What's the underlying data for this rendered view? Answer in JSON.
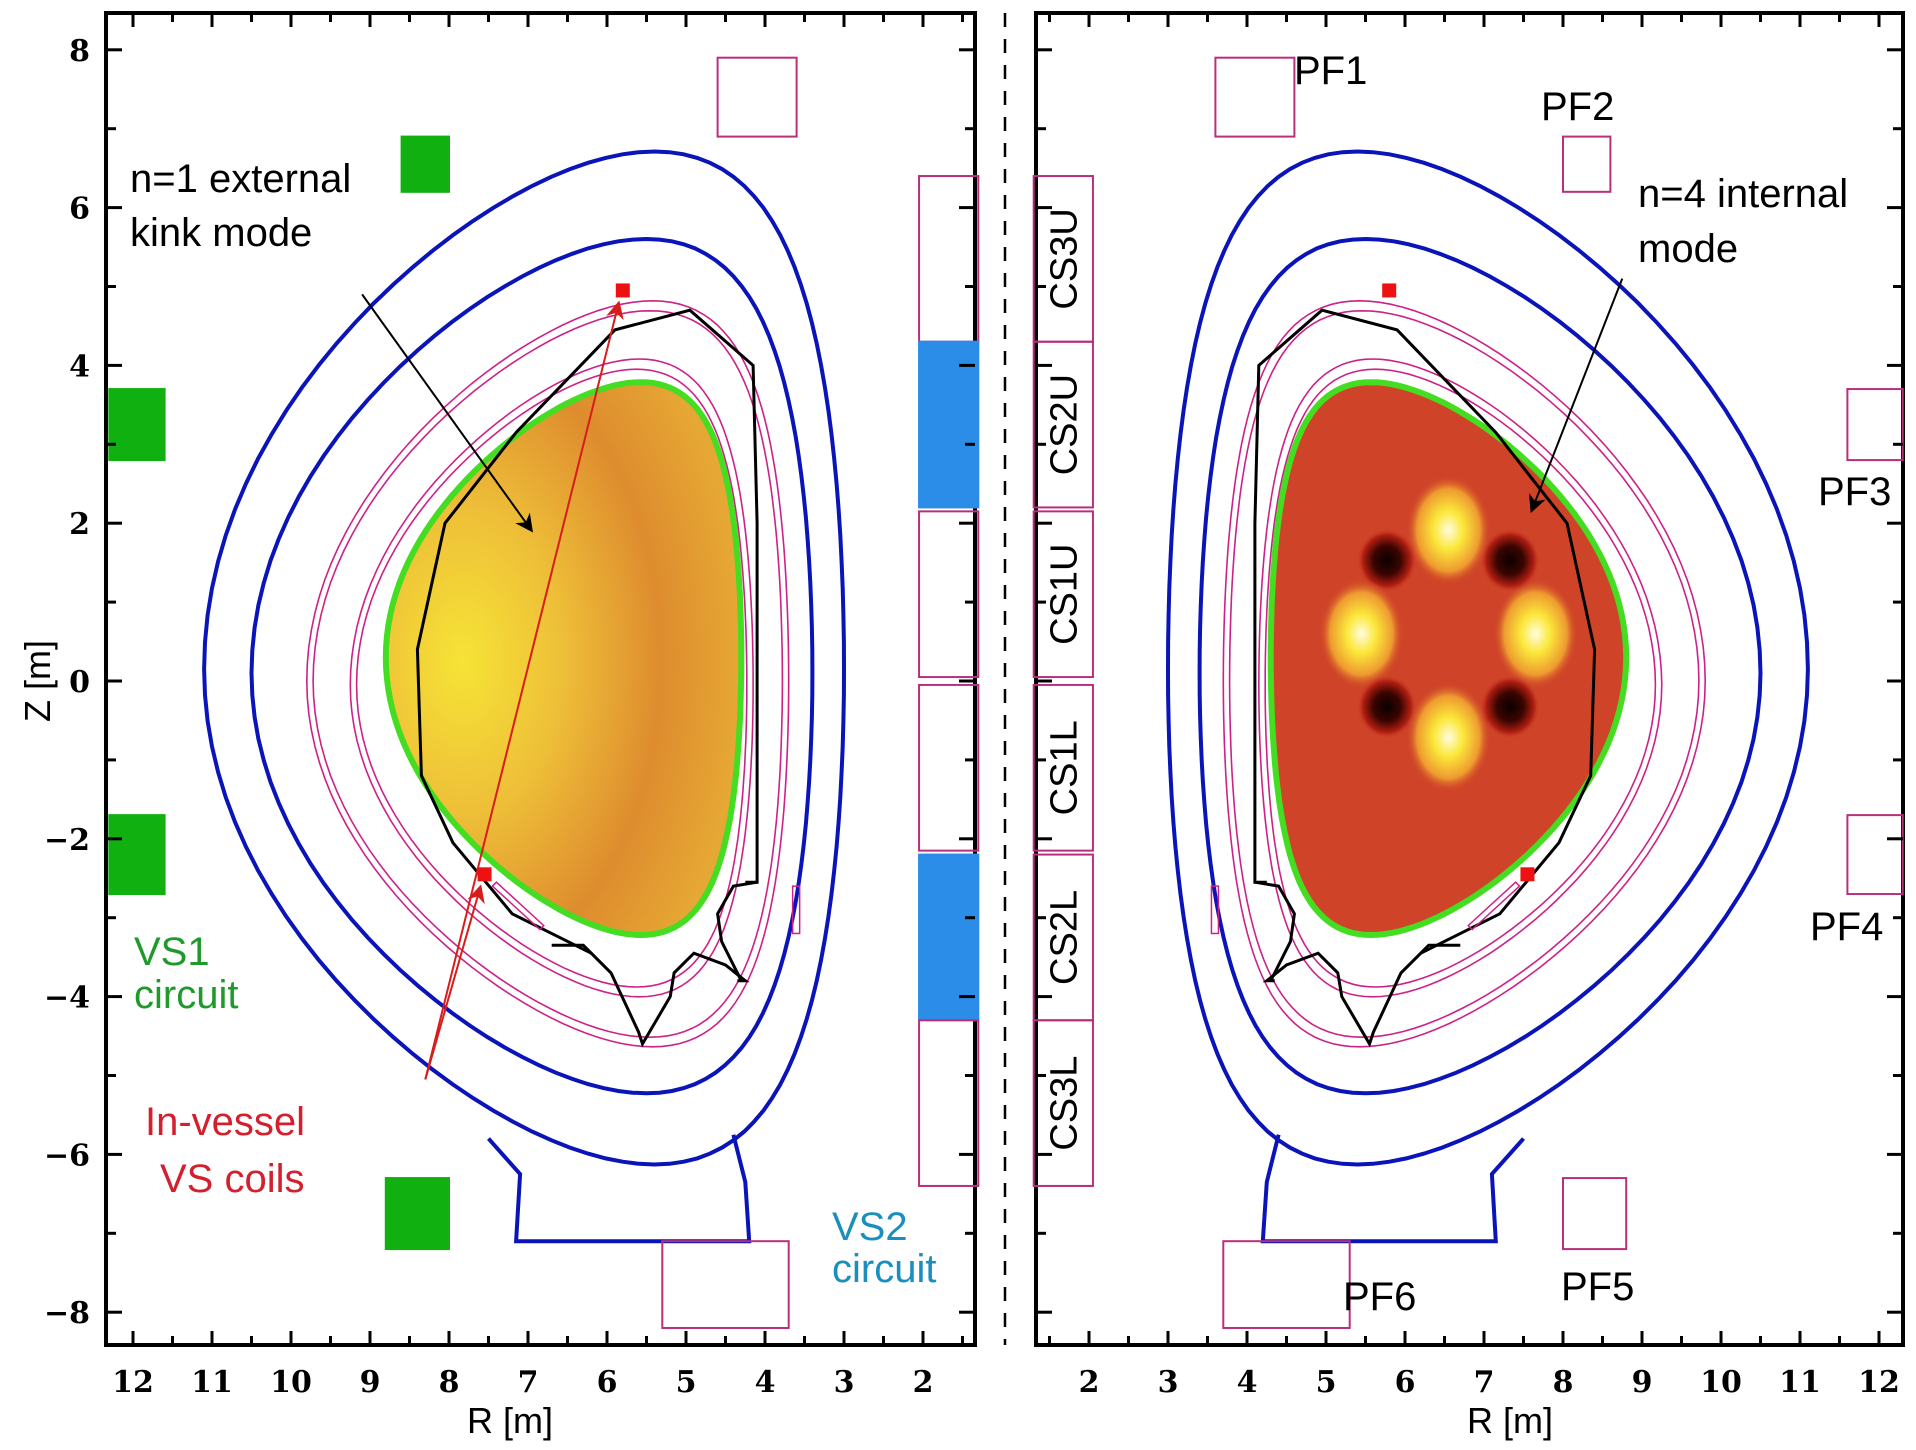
{
  "figure": {
    "description": "Poloidal cross-section of tokamak (two mirrored panels) showing coils, vessel, plasma mode structure",
    "colors": {
      "vessel_outline": "#0a14b8",
      "blanket_outline": "#cc2288",
      "coil_outline": "#b8307a",
      "first_wall": "#000000",
      "separatrix": "#44dd22",
      "vs1_coil_fill": "#10b010",
      "vs2_coil_fill": "#2b8de8",
      "invessel_coil": "#ee1111",
      "vs1_text": "#1e9a2a",
      "vs2_text": "#1a8fbe",
      "invessel_text": "#d4202e",
      "plasma_left": "#e09a30",
      "plasma_right": "#cf4428"
    }
  },
  "chart_data": [
    {
      "type": "diagram",
      "panel": "left",
      "title": "",
      "xlabel": "R [m]",
      "ylabel": "Z [m]",
      "xlim": [
        12.3,
        1.3
      ],
      "ylim": [
        -8.6,
        8.5
      ],
      "x_reversed": true,
      "xticks": [
        "12",
        "11",
        "10",
        "9",
        "8",
        "7",
        "6",
        "5",
        "4",
        "3",
        "2"
      ],
      "yticks": [
        "8",
        "6",
        "4",
        "2",
        "0",
        "−2",
        "−4",
        "−6",
        "−8"
      ],
      "annotations": [
        {
          "text": "n=1 external",
          "color": "#000000"
        },
        {
          "text": "kink mode",
          "color": "#000000"
        },
        {
          "text": "VS1",
          "color": "#1e9a2a"
        },
        {
          "text": "circuit",
          "color": "#1e9a2a"
        },
        {
          "text": "In-vessel",
          "color": "#d4202e"
        },
        {
          "text": "VS coils",
          "color": "#d4202e"
        },
        {
          "text": "VS2",
          "color": "#1a8fbe"
        },
        {
          "text": "circuit",
          "color": "#1a8fbe"
        }
      ],
      "plasma_mode": "n=1 external kink mode"
    },
    {
      "type": "diagram",
      "panel": "right",
      "title": "",
      "xlabel": "R [m]",
      "ylabel": "",
      "xlim": [
        1.3,
        12.3
      ],
      "ylim": [
        -8.6,
        8.5
      ],
      "xticks": [
        "2",
        "3",
        "4",
        "5",
        "6",
        "7",
        "8",
        "9",
        "10",
        "11",
        "12"
      ],
      "annotations": [
        {
          "text": "n=4 internal",
          "color": "#000000"
        },
        {
          "text": "mode",
          "color": "#000000"
        },
        {
          "text": "PF1"
        },
        {
          "text": "PF2"
        },
        {
          "text": "PF3"
        },
        {
          "text": "PF4"
        },
        {
          "text": "PF5"
        },
        {
          "text": "PF6"
        }
      ],
      "plasma_mode": "n=4 internal mode"
    }
  ],
  "geometry": {
    "pf_coils": [
      {
        "name": "PF1",
        "r": [
          3.6,
          4.6
        ],
        "z": [
          6.9,
          7.9
        ]
      },
      {
        "name": "PF2",
        "r": [
          8.0,
          8.6
        ],
        "z": [
          6.2,
          6.9
        ]
      },
      {
        "name": "PF3",
        "r": [
          11.6,
          12.3
        ],
        "z": [
          2.8,
          3.7
        ]
      },
      {
        "name": "PF4",
        "r": [
          11.6,
          12.3
        ],
        "z": [
          -2.7,
          -1.7
        ]
      },
      {
        "name": "PF5",
        "r": [
          8.0,
          8.8
        ],
        "z": [
          -7.2,
          -6.3
        ]
      },
      {
        "name": "PF6",
        "r": [
          3.7,
          5.3
        ],
        "z": [
          -8.2,
          -7.1
        ]
      }
    ],
    "cs_coils": [
      {
        "name": "CS3U",
        "z": [
          4.3,
          6.4
        ],
        "vs2": false
      },
      {
        "name": "CS2U",
        "z": [
          2.2,
          4.3
        ],
        "vs2": true
      },
      {
        "name": "CS1U",
        "z": [
          0.05,
          2.15
        ],
        "vs2": false
      },
      {
        "name": "CS1L",
        "z": [
          -2.15,
          -0.05
        ],
        "vs2": false
      },
      {
        "name": "CS2L",
        "z": [
          -4.3,
          -2.2
        ],
        "vs2": true
      },
      {
        "name": "CS3L",
        "z": [
          -6.4,
          -4.3
        ],
        "vs2": false
      }
    ],
    "cs_r": [
      1.3,
      2.05
    ],
    "vs1_coils_left": [
      {
        "name": "PF2-VS1",
        "r": [
          8.0,
          8.6
        ],
        "z": [
          6.2,
          6.9
        ]
      },
      {
        "name": "PF3-VS1",
        "r": [
          11.6,
          12.3
        ],
        "z": [
          2.8,
          3.7
        ]
      },
      {
        "name": "PF4-VS1",
        "r": [
          11.6,
          12.3
        ],
        "z": [
          -2.7,
          -1.7
        ]
      },
      {
        "name": "PF5-VS1",
        "r": [
          8.0,
          8.8
        ],
        "z": [
          -7.2,
          -6.3
        ]
      }
    ],
    "invessel_coils": [
      {
        "r": 5.8,
        "z": 4.95
      },
      {
        "r": 7.55,
        "z": -2.45
      }
    ],
    "magnetic_axis": {
      "r": 6.6,
      "z": 0.6
    }
  }
}
